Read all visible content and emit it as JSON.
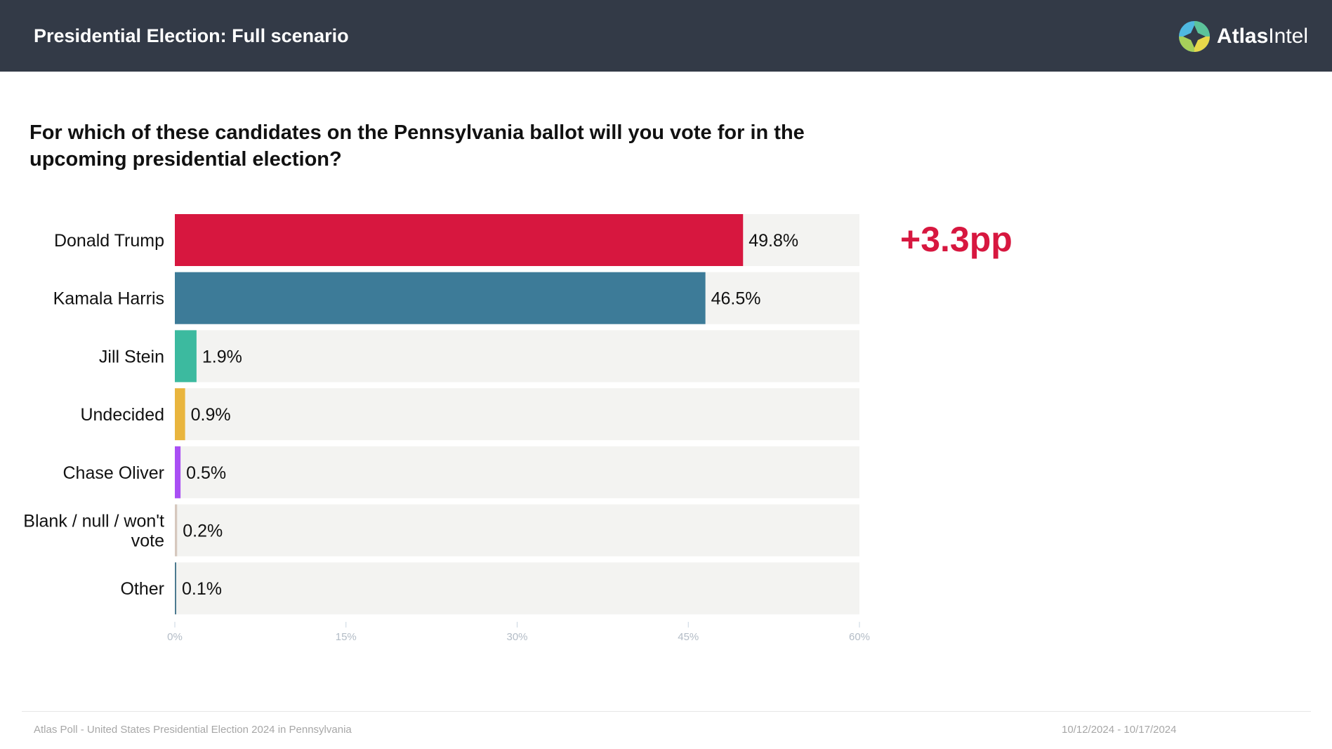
{
  "header": {
    "title": "Presidential Election: Full scenario"
  },
  "logo": {
    "name_bold": "Atlas",
    "name_rest": "Intel"
  },
  "question": "For which of these candidates on the Pennsylvania ballot will you vote for in the upcoming presidential election?",
  "difference": "+3.3pp",
  "footer": {
    "source": "Atlas Poll - United States Presidential Election 2024 in Pennsylvania",
    "dates": "10/12/2024 - 10/17/2024"
  },
  "colors": {
    "difference": "#d7173f",
    "track": "#f3f3f1",
    "header_bg": "#333a47"
  },
  "chart_data": {
    "type": "bar",
    "orientation": "horizontal",
    "categories": [
      "Donald Trump",
      "Kamala Harris",
      "Jill Stein",
      "Undecided",
      "Chase Oliver",
      "Blank / null / won't vote",
      "Other"
    ],
    "category_lines": [
      [
        "Donald Trump"
      ],
      [
        "Kamala Harris"
      ],
      [
        "Jill Stein"
      ],
      [
        "Undecided"
      ],
      [
        "Chase Oliver"
      ],
      [
        "Blank / null / won't",
        "vote"
      ],
      [
        "Other"
      ]
    ],
    "values": [
      49.8,
      46.5,
      1.9,
      0.9,
      0.5,
      0.2,
      0.1
    ],
    "value_labels": [
      "49.8%",
      "46.5%",
      "1.9%",
      "0.9%",
      "0.5%",
      "0.2%",
      "0.1%"
    ],
    "colors": [
      "#d7173f",
      "#3d7b98",
      "#3cba9f",
      "#e9b53e",
      "#a94ff4",
      "#d6c8be",
      "#4c7a90"
    ],
    "xlim": [
      0,
      60
    ],
    "xticks": [
      0,
      15,
      30,
      45,
      60
    ],
    "xtick_labels": [
      "0%",
      "15%",
      "30%",
      "45%",
      "60%"
    ],
    "title": "",
    "xlabel": "",
    "ylabel": ""
  }
}
